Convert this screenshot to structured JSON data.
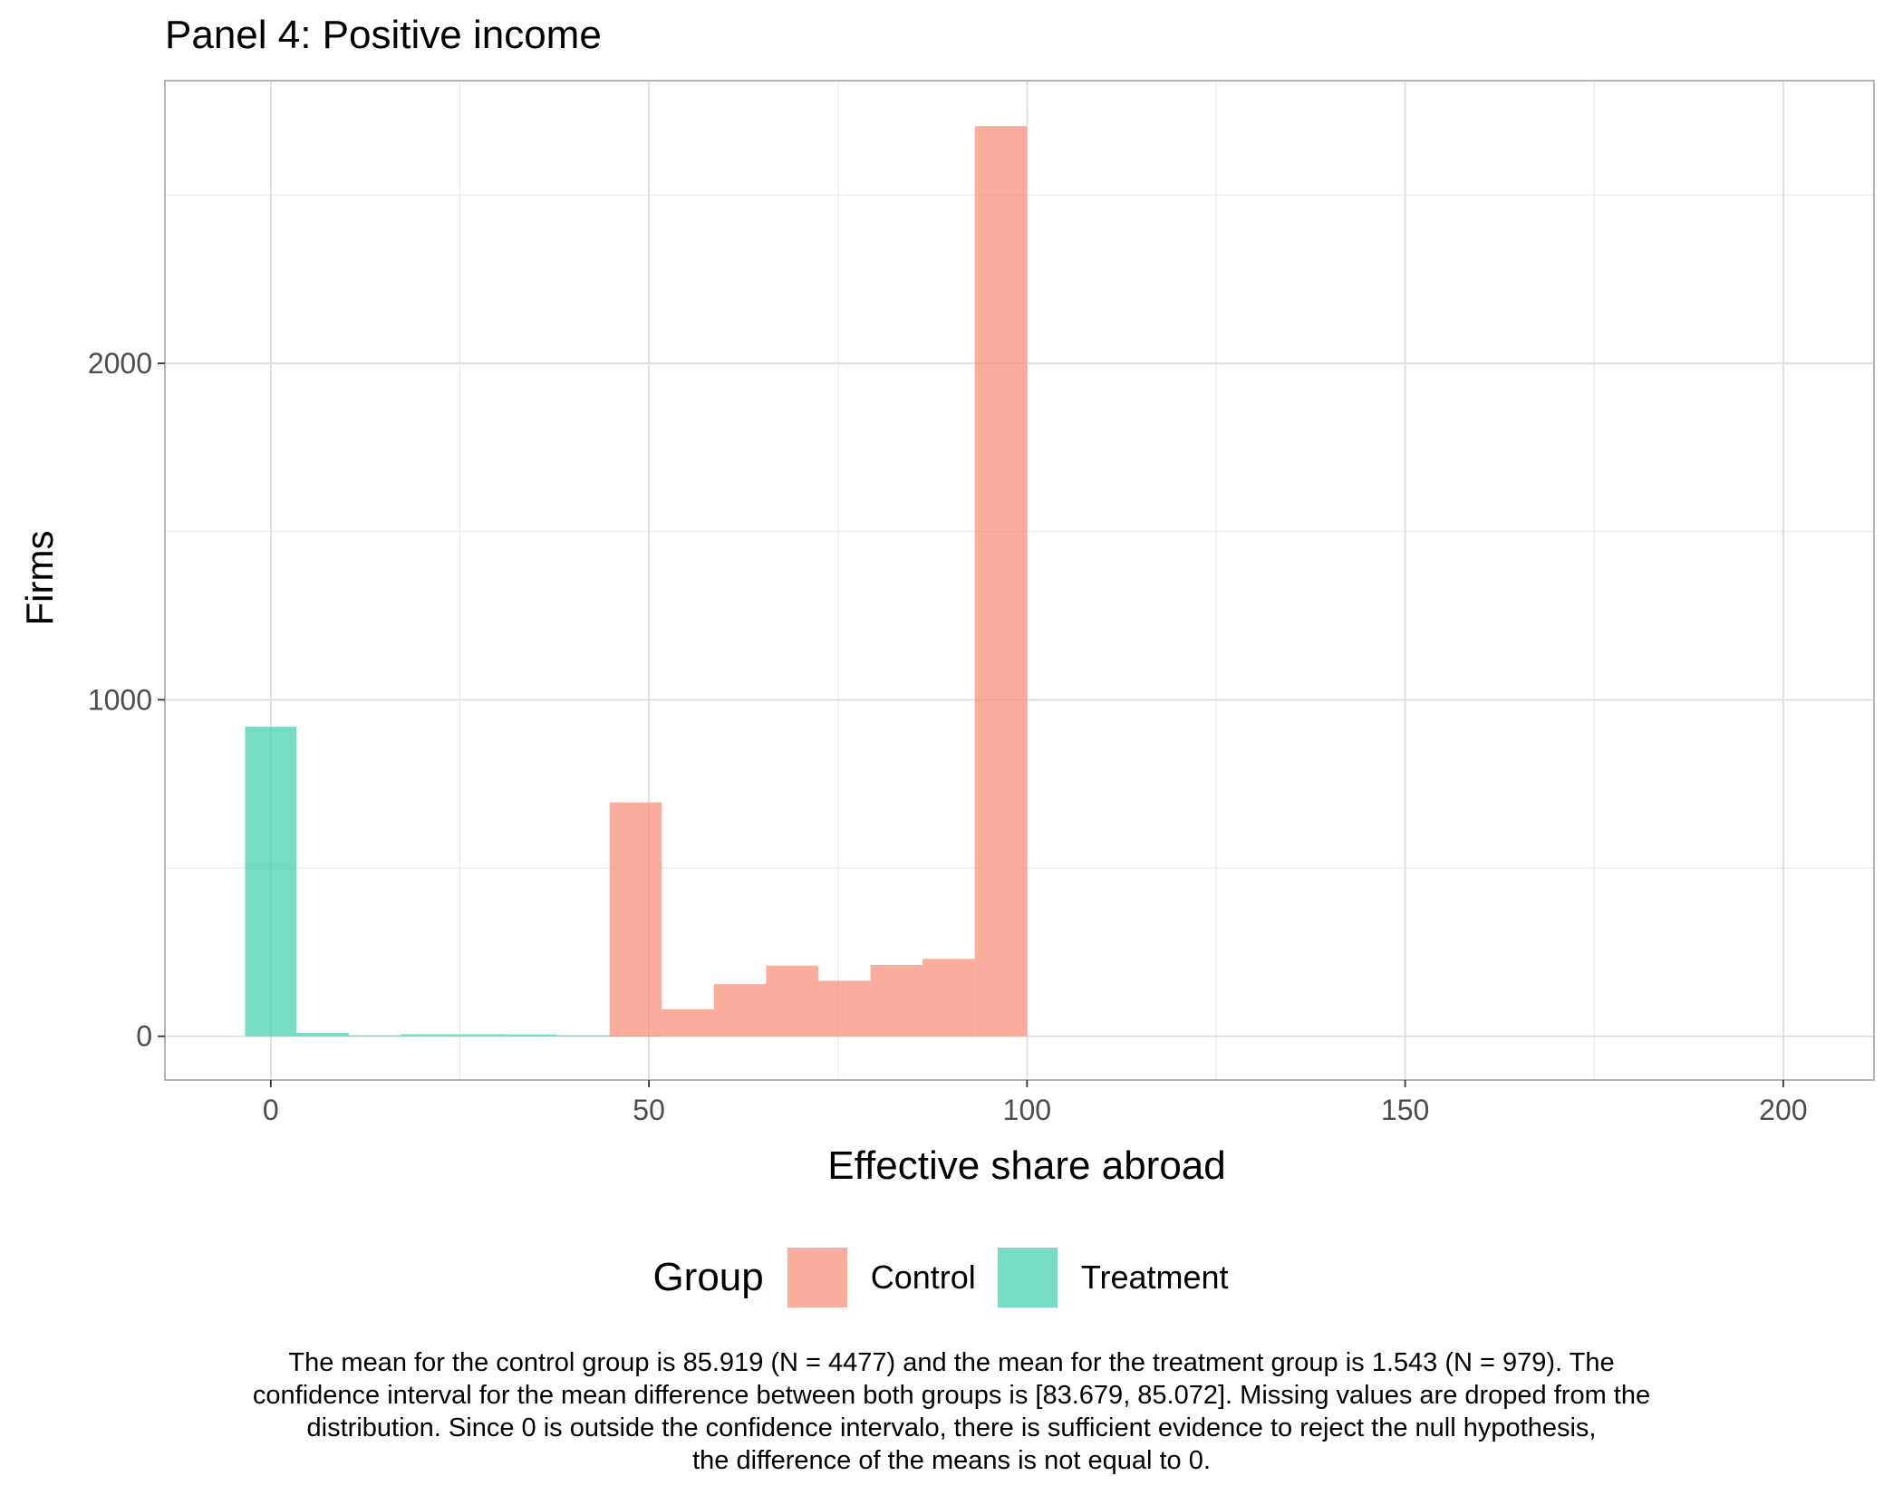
{
  "chart_data": {
    "type": "bar",
    "title": "Panel 4: Positive income",
    "xlabel": "Effective share abroad",
    "ylabel": "Firms",
    "xlim": [
      -14,
      212
    ],
    "ylim": [
      -130,
      2840
    ],
    "x_ticks": [
      0,
      50,
      100,
      150,
      200
    ],
    "x_tick_labels": [
      "0",
      "50",
      "100",
      "150",
      "200"
    ],
    "y_ticks": [
      0,
      1000,
      2000
    ],
    "y_tick_labels": [
      "0",
      "1000",
      "2000"
    ],
    "grid": true,
    "legend_position": "bottom",
    "bin_width": 6.9,
    "series": [
      {
        "name": "Control",
        "color": "#F98A73",
        "bins": [
          {
            "x0": 44.8,
            "x1": 51.7,
            "count": 695
          },
          {
            "x0": 51.7,
            "x1": 58.6,
            "count": 80
          },
          {
            "x0": 58.6,
            "x1": 65.5,
            "count": 155
          },
          {
            "x0": 65.5,
            "x1": 72.4,
            "count": 210
          },
          {
            "x0": 72.4,
            "x1": 79.3,
            "count": 165
          },
          {
            "x0": 79.3,
            "x1": 86.2,
            "count": 212
          },
          {
            "x0": 86.2,
            "x1": 93.1,
            "count": 230
          },
          {
            "x0": 93.1,
            "x1": 100.0,
            "count": 2705
          }
        ]
      },
      {
        "name": "Treatment",
        "color": "#3CCFAB",
        "bins": [
          {
            "x0": -3.4,
            "x1": 3.4,
            "count": 920
          },
          {
            "x0": 3.4,
            "x1": 10.3,
            "count": 10
          },
          {
            "x0": 10.3,
            "x1": 17.2,
            "count": 3
          },
          {
            "x0": 17.2,
            "x1": 24.1,
            "count": 6
          },
          {
            "x0": 24.1,
            "x1": 31.0,
            "count": 6
          },
          {
            "x0": 31.0,
            "x1": 37.9,
            "count": 5
          },
          {
            "x0": 37.9,
            "x1": 44.8,
            "count": 3
          },
          {
            "x0": 44.8,
            "x1": 51.7,
            "count": 2
          }
        ]
      }
    ]
  },
  "legend": {
    "title": "Group",
    "items": [
      {
        "label": "Control",
        "color": "#F98A73"
      },
      {
        "label": "Treatment",
        "color": "#3CCFAB"
      }
    ]
  },
  "caption": {
    "lines": [
      "The mean for the control group is 85.919 (N = 4477) and the mean for the treatment group is 1.543 (N = 979). The",
      "confidence interval for the mean difference between both groups is [83.679, 85.072]. Missing values are droped from the",
      "distribution. Since 0 is outside the confidence intervalo, there is sufficient evidence to reject the null hypothesis,",
      "the difference of the means is not equal to 0."
    ]
  }
}
